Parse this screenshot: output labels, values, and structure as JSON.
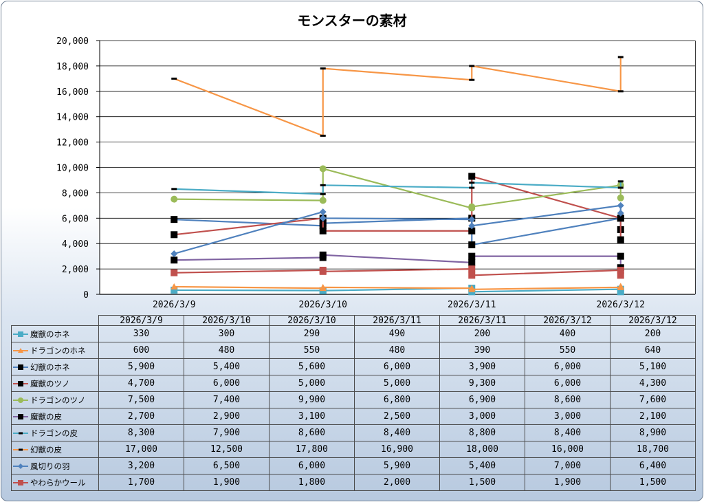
{
  "chart_data": {
    "type": "line",
    "title": "モンスターの素材",
    "axis_categories": [
      "2026/3/9",
      "2026/3/10",
      "2026/3/11",
      "2026/3/12"
    ],
    "table_columns": [
      "2026/3/9",
      "2026/3/10",
      "2026/3/10",
      "2026/3/11",
      "2026/3/11",
      "2026/3/12",
      "2026/3/12"
    ],
    "point_category_index": [
      0,
      1,
      1,
      2,
      2,
      3,
      3
    ],
    "ylim": [
      0,
      20000
    ],
    "yticks": [
      "0",
      "2,000",
      "4,000",
      "6,000",
      "8,000",
      "10,000",
      "12,000",
      "14,000",
      "16,000",
      "18,000",
      "20,000"
    ],
    "gridlines": true,
    "legend": "data-table-left",
    "series": [
      {
        "name": "魔獣のホネ",
        "color": "#4bacc6",
        "marker": "square",
        "values": [
          330,
          300,
          290,
          490,
          200,
          400,
          200
        ],
        "labels": [
          "330",
          "300",
          "290",
          "490",
          "200",
          "400",
          "200"
        ]
      },
      {
        "name": "ドラゴンのホネ",
        "color": "#f79646",
        "marker": "triangle",
        "values": [
          600,
          480,
          550,
          480,
          390,
          550,
          640
        ],
        "labels": [
          "600",
          "480",
          "550",
          "480",
          "390",
          "550",
          "640"
        ]
      },
      {
        "name": "幻獣のホネ",
        "color": "#4f81bd",
        "marker": "blacksquare",
        "values": [
          5900,
          5400,
          5600,
          6000,
          3900,
          6000,
          5100
        ],
        "labels": [
          "5,900",
          "5,400",
          "5,600",
          "6,000",
          "3,900",
          "6,000",
          "5,100"
        ]
      },
      {
        "name": "魔獣のツノ",
        "color": "#c0504d",
        "marker": "blacksquare",
        "values": [
          4700,
          6000,
          5000,
          5000,
          9300,
          6000,
          4300
        ],
        "labels": [
          "4,700",
          "6,000",
          "5,000",
          "5,000",
          "9,300",
          "6,000",
          "4,300"
        ]
      },
      {
        "name": "ドラゴンのツノ",
        "color": "#9bbb59",
        "marker": "circle",
        "values": [
          7500,
          7400,
          9900,
          6800,
          6900,
          8600,
          7600
        ],
        "labels": [
          "7,500",
          "7,400",
          "9,900",
          "6,800",
          "6,900",
          "8,600",
          "7,600"
        ]
      },
      {
        "name": "魔獣の皮",
        "color": "#8064a2",
        "marker": "blacksquare",
        "values": [
          2700,
          2900,
          3100,
          2500,
          3000,
          3000,
          2100
        ],
        "labels": [
          "2,700",
          "2,900",
          "3,100",
          "2,500",
          "3,000",
          "3,000",
          "2,100"
        ]
      },
      {
        "name": "ドラゴンの皮",
        "color": "#4bacc6",
        "marker": "dash",
        "values": [
          8300,
          7900,
          8600,
          8400,
          8800,
          8400,
          8900
        ],
        "labels": [
          "8,300",
          "7,900",
          "8,600",
          "8,400",
          "8,800",
          "8,400",
          "8,900"
        ]
      },
      {
        "name": "幻獣の皮",
        "color": "#f79646",
        "marker": "dash",
        "values": [
          17000,
          12500,
          17800,
          16900,
          18000,
          16000,
          18700
        ],
        "labels": [
          "17,000",
          "12,500",
          "17,800",
          "16,900",
          "18,000",
          "16,000",
          "18,700"
        ]
      },
      {
        "name": "風切りの羽",
        "color": "#4f81bd",
        "marker": "diamond",
        "values": [
          3200,
          6500,
          6000,
          5900,
          5400,
          7000,
          6400
        ],
        "labels": [
          "3,200",
          "6,500",
          "6,000",
          "5,900",
          "5,400",
          "7,000",
          "6,400"
        ]
      },
      {
        "name": "やわらかウール",
        "color": "#c0504d",
        "marker": "square",
        "values": [
          1700,
          1900,
          1800,
          2000,
          1500,
          1900,
          1500
        ],
        "labels": [
          "1,700",
          "1,900",
          "1,800",
          "2,000",
          "1,500",
          "1,900",
          "1,500"
        ]
      }
    ]
  }
}
